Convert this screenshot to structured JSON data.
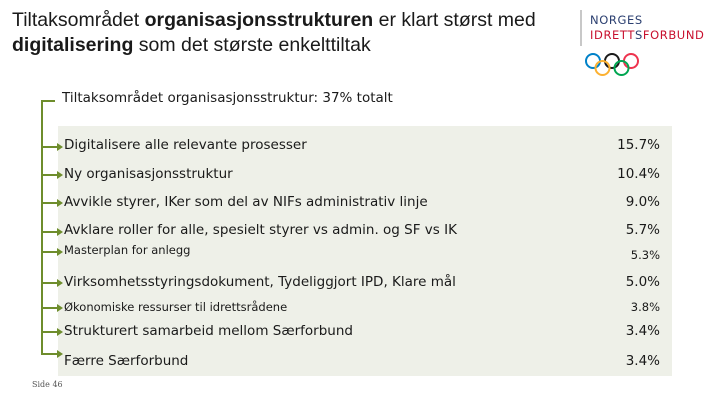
{
  "title": {
    "line1_pre": "Tiltaksområdet ",
    "line1_bold": "organisasjonsstrukturen",
    "line1_post": " er klart størst med",
    "line2_bold": "digitalisering",
    "line2_post": " som det største enkelttiltak"
  },
  "logo": {
    "line1": "NORGES",
    "line2_a": "IDRETT",
    "line2_b": "S",
    "line2_c": "FORBUND",
    "ring_colors": [
      "#0081c8",
      "#fcb131",
      "#1a1a1a",
      "#00a651",
      "#ee334e"
    ]
  },
  "header": "Tiltaksområdet organisasjonsstruktur: 37% totalt",
  "rows": [
    {
      "label": "Digitalisere alle relevante prosesser",
      "value": "15.7%",
      "size": "big"
    },
    {
      "label": "Ny organisasjonsstruktur",
      "value": "10.4%",
      "size": "big"
    },
    {
      "label": "Avvikle styrer, IKer som del av NIFs administrativ linje",
      "value": "9.0%",
      "size": "big"
    },
    {
      "label": "Avklare roller for alle, spesielt styrer vs admin. og SF vs IK",
      "value": "5.7%",
      "size": "big"
    },
    {
      "label": "Masterplan for anlegg",
      "value": "5.3%",
      "size": "small"
    },
    {
      "label": "Virksomhetsstyringsdokument, Tydeliggjort IPD, Klare mål",
      "value": "5.0%",
      "size": "big"
    },
    {
      "label": "Økonomiske ressurser til idrettsrådene",
      "value": "3.8%",
      "size": "small"
    },
    {
      "label": "Strukturert samarbeid mellom Særforbund",
      "value": "3.4%",
      "size": "big"
    },
    {
      "label": "Færre Særforbund",
      "value": "3.4%",
      "size": "big"
    }
  ],
  "footer": "Side 46",
  "colors": {
    "accent": "#6e8d2c",
    "panel": "#eef0e8",
    "brand_red": "#c8102e",
    "brand_blue": "#2b3f70"
  }
}
